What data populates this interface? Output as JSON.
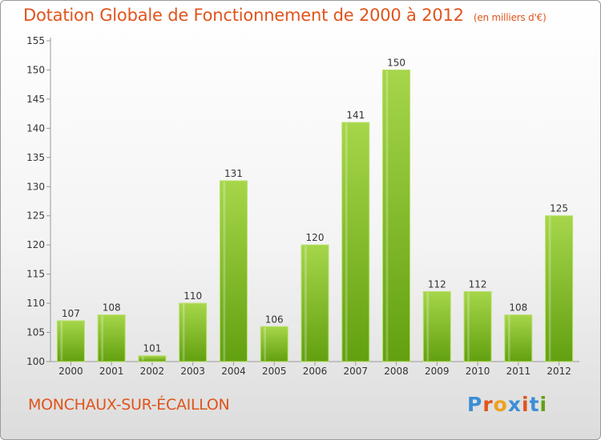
{
  "header": {
    "title": "Dotation Globale de Fonctionnement de 2000 à 2012",
    "unit": "(en milliers d'€)"
  },
  "footer": {
    "commune": "MONCHAUX-SUR-ÉCAILLON",
    "logo": "Proxiti"
  },
  "colors": {
    "title": "#e0541c",
    "bar_light": "#a6d64a",
    "bar_dark": "#62a010",
    "logo_letters": [
      "#3b8fd6",
      "#e0541c",
      "#f0a01c",
      "#3b8fd6",
      "#e0541c",
      "#3b8fd6",
      "#62a010"
    ]
  },
  "chart_data": {
    "type": "bar",
    "categories": [
      "2000",
      "2001",
      "2002",
      "2003",
      "2004",
      "2005",
      "2006",
      "2007",
      "2008",
      "2009",
      "2010",
      "2011",
      "2012"
    ],
    "values": [
      107,
      108,
      101,
      110,
      131,
      106,
      120,
      141,
      150,
      112,
      112,
      108,
      125
    ],
    "ylim": [
      100,
      155
    ],
    "yticks": [
      100,
      105,
      110,
      115,
      120,
      125,
      130,
      135,
      140,
      145,
      150,
      155
    ],
    "grid": false
  }
}
